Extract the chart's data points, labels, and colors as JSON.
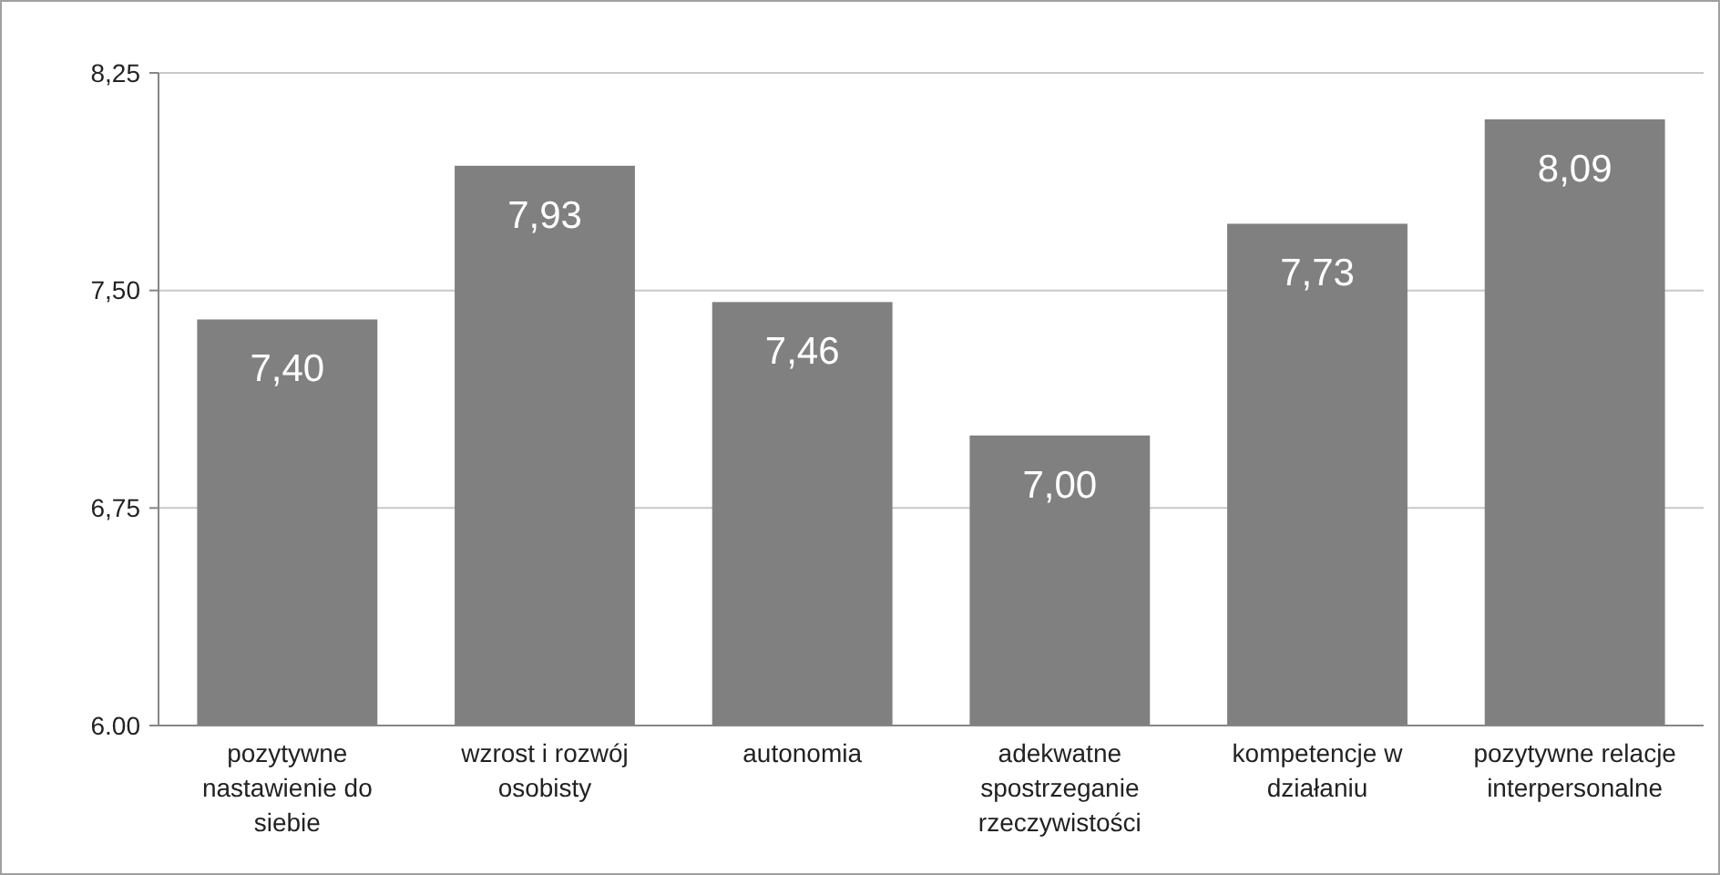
{
  "chart_data": {
    "type": "bar",
    "categories": [
      "pozytywne nastawienie do siebie",
      "wzrost i rozwój osobisty",
      "autonomia",
      "adekwatne spostrzeganie rzeczywistości",
      "kompetencje w działaniu",
      "pozytywne relacje interpersonalne"
    ],
    "values": [
      7.4,
      7.93,
      7.46,
      7.0,
      7.73,
      8.09
    ],
    "value_labels": [
      "7,40",
      "7,93",
      "7,46",
      "7,00",
      "7,73",
      "8,09"
    ],
    "color": "#808080",
    "ylim": [
      6,
      8.25
    ],
    "yticks": [
      {
        "value": 6,
        "label": "6.00"
      },
      {
        "value": 6.75,
        "label": "6,75"
      },
      {
        "value": 7.5,
        "label": "7,50"
      },
      {
        "value": 8.25,
        "label": "8,25"
      }
    ],
    "grid": "y"
  }
}
